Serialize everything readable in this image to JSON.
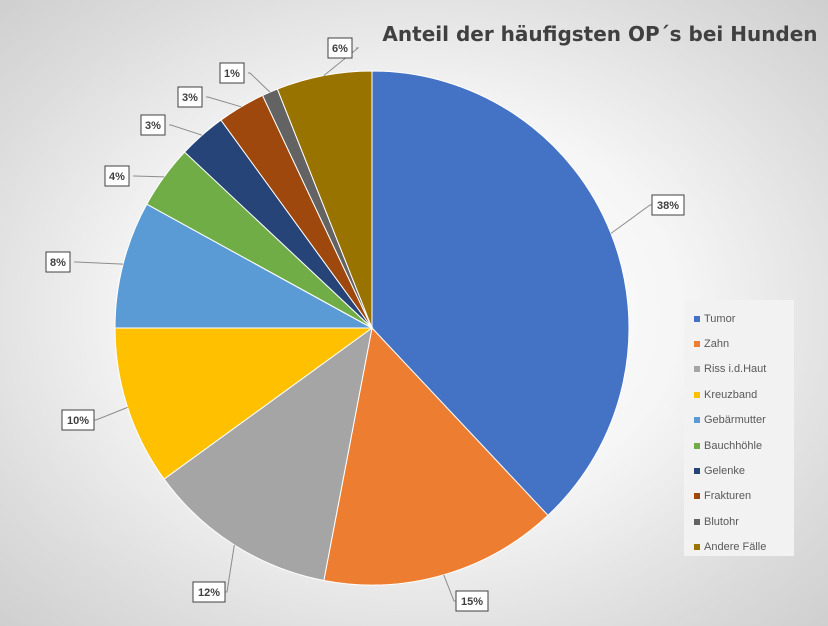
{
  "chart_data": {
    "type": "pie",
    "title": "Anteil der häufigsten OP´s bei Hunden",
    "legend_position": "right",
    "slices": [
      {
        "label": "Tumor",
        "value": 38,
        "data_label": "38%",
        "color": "#4472C4"
      },
      {
        "label": "Zahn",
        "value": 15,
        "data_label": "15%",
        "color": "#ED7D31"
      },
      {
        "label": "Riss i.d.Haut",
        "value": 12,
        "data_label": "12%",
        "color": "#A5A5A5"
      },
      {
        "label": "Kreuzband",
        "value": 10,
        "data_label": "10%",
        "color": "#FFC000"
      },
      {
        "label": "Gebärmutter",
        "value": 8,
        "data_label": "8%",
        "color": "#5B9BD5"
      },
      {
        "label": "Bauchhöhle",
        "value": 4,
        "data_label": "4%",
        "color": "#70AD47"
      },
      {
        "label": "Gelenke",
        "value": 3,
        "data_label": "3%",
        "color": "#264478"
      },
      {
        "label": "Frakturen",
        "value": 3,
        "data_label": "3%",
        "color": "#9E480E"
      },
      {
        "label": "Blutohr",
        "value": 1,
        "data_label": "1%",
        "color": "#636363"
      },
      {
        "label": "Andere Fälle",
        "value": 6,
        "data_label": "6%",
        "color": "#997300"
      }
    ]
  }
}
